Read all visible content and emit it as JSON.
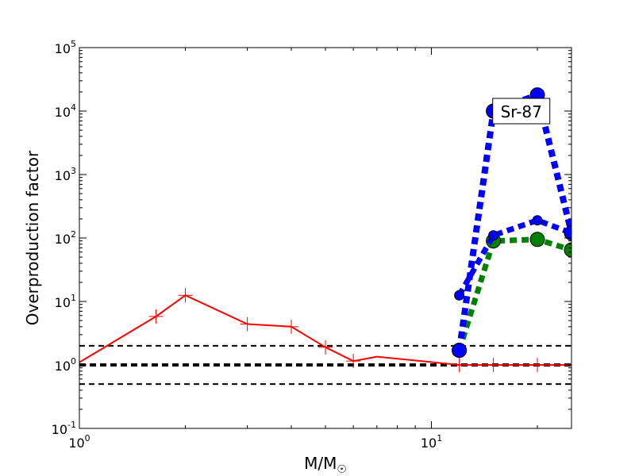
{
  "chart_data": {
    "type": "line",
    "xscale": "log",
    "yscale": "log",
    "xlim": [
      1,
      25
    ],
    "ylim": [
      0.1,
      100000
    ],
    "xlabel_main": "M/M",
    "xlabel_sub": "☉",
    "ylabel": "Overproduction factor",
    "grid": false,
    "x_ticks": [
      {
        "value": 1,
        "base": "10",
        "exp": "0"
      },
      {
        "value": 10,
        "base": "10",
        "exp": "1"
      }
    ],
    "y_ticks": [
      {
        "value": 0.1,
        "base": "10",
        "exp": "-1"
      },
      {
        "value": 1,
        "base": "10",
        "exp": "0"
      },
      {
        "value": 10,
        "base": "10",
        "exp": "1"
      },
      {
        "value": 100,
        "base": "10",
        "exp": "2"
      },
      {
        "value": 1000,
        "base": "10",
        "exp": "3"
      },
      {
        "value": 10000,
        "base": "10",
        "exp": "4"
      },
      {
        "value": 100000,
        "base": "10",
        "exp": "5"
      }
    ],
    "reference_lines": [
      {
        "y": 2,
        "style": "dashed",
        "width": "thin"
      },
      {
        "y": 1,
        "style": "dashed",
        "width": "thick"
      },
      {
        "y": 0.5,
        "style": "dashed",
        "width": "thin"
      }
    ],
    "annotation": {
      "text": "Sr-87",
      "x": 18,
      "y": 10000
    },
    "series": [
      {
        "color": "#ff0000",
        "style": "solid",
        "marker": "plus",
        "x": [
          1.0,
          1.65,
          2.0,
          3.0,
          4.0,
          5.0,
          6.0,
          7.0,
          12.0,
          15.0,
          20.0,
          25.0
        ],
        "y": [
          1.1,
          5.8,
          12.5,
          4.4,
          4.0,
          1.9,
          1.15,
          1.35,
          1.0,
          1.0,
          1.0,
          1.0
        ],
        "marker_x": [
          1.65,
          2.0,
          3.0,
          4.0,
          5.0,
          6.0,
          12.0,
          15.0,
          20.0
        ],
        "marker_y": [
          5.8,
          12.5,
          4.4,
          4.0,
          1.9,
          1.15,
          1.0,
          1.0,
          1.0
        ]
      },
      {
        "color": "#008000",
        "style": "dotted",
        "marker": "circle-large",
        "x": [
          12,
          15,
          20,
          25
        ],
        "y": [
          1.7,
          90,
          95,
          65
        ]
      },
      {
        "color": "#0000ff",
        "style": "dotted",
        "marker": "circle-small",
        "x": [
          12,
          15,
          20,
          25
        ],
        "y": [
          12.5,
          110,
          190,
          120
        ]
      },
      {
        "color": "#0000ff",
        "style": "dotted",
        "marker": "circle-large",
        "x": [
          12,
          15,
          20,
          25
        ],
        "y": [
          1.7,
          10000,
          18000,
          120
        ]
      }
    ]
  }
}
